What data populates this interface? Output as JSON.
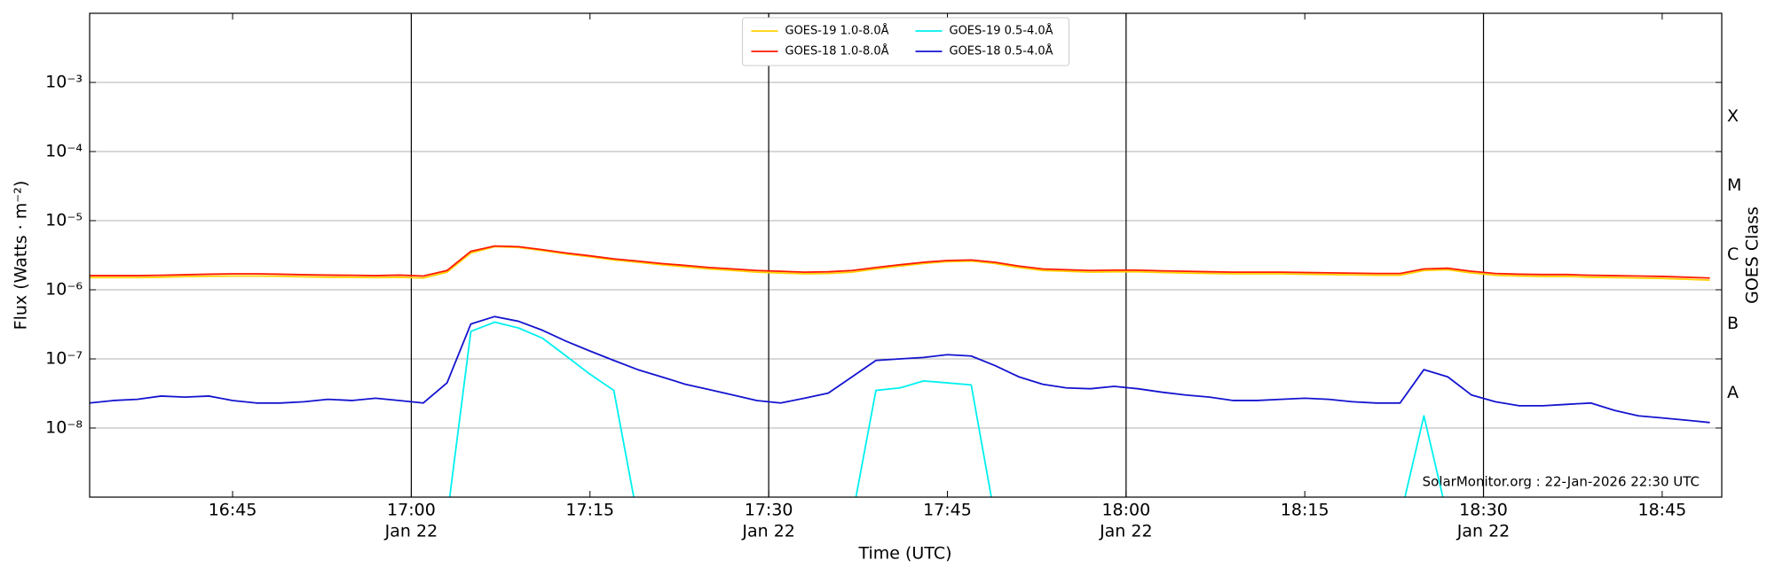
{
  "chart_data": {
    "type": "line",
    "ylabel": "Flux (Watts · m⁻²)",
    "xlabel": "Time (UTC)",
    "y2label": "GOES Class",
    "annotation": "SolarMonitor.org : 22-Jan-2026 22:30 UTC",
    "ylog": true,
    "grid": true,
    "legend": "upper center",
    "ylim": [
      1e-09,
      0.01
    ],
    "yticks": [
      {
        "value": 1e-08,
        "label": "10⁻⁸"
      },
      {
        "value": 1e-07,
        "label": "10⁻⁷"
      },
      {
        "value": 1e-06,
        "label": "10⁻⁶"
      },
      {
        "value": 1e-05,
        "label": "10⁻⁵"
      },
      {
        "value": 0.0001,
        "label": "10⁻⁴"
      },
      {
        "value": 0.001,
        "label": "10⁻³"
      }
    ],
    "y2lim": [
      1e-09,
      0.01
    ],
    "y2ticks": [
      {
        "value": 3.2e-08,
        "label": "A"
      },
      {
        "value": 3.2e-07,
        "label": "B"
      },
      {
        "value": 3.2e-06,
        "label": "C"
      },
      {
        "value": 3.2e-05,
        "label": "M"
      },
      {
        "value": 0.00032,
        "label": "X"
      }
    ],
    "xlim": [
      "16:33",
      "18:50"
    ],
    "xticks": [
      "16:45",
      {
        "value": "17:00",
        "label": [
          "17:00",
          "Jan 22"
        ]
      },
      "17:15",
      {
        "value": "17:30",
        "label": [
          "17:30",
          "Jan 22"
        ]
      },
      "17:45",
      {
        "value": "18:00",
        "label": [
          "18:00",
          "Jan 22"
        ]
      },
      "18:15",
      {
        "value": "18:30",
        "label": [
          "18:30",
          "Jan 22"
        ]
      },
      "18:45"
    ],
    "vlines": [
      "17:00",
      "17:30",
      "18:00",
      "18:30"
    ],
    "x": [
      "16:33",
      "16:35",
      "16:37",
      "16:39",
      "16:41",
      "16:43",
      "16:45",
      "16:47",
      "16:49",
      "16:51",
      "16:53",
      "16:55",
      "16:57",
      "16:59",
      "17:01",
      "17:03",
      "17:05",
      "17:07",
      "17:09",
      "17:11",
      "17:13",
      "17:15",
      "17:17",
      "17:19",
      "17:21",
      "17:23",
      "17:25",
      "17:27",
      "17:29",
      "17:31",
      "17:33",
      "17:35",
      "17:37",
      "17:39",
      "17:41",
      "17:43",
      "17:45",
      "17:47",
      "17:49",
      "17:51",
      "17:53",
      "17:55",
      "17:57",
      "17:59",
      "18:01",
      "18:03",
      "18:05",
      "18:07",
      "18:09",
      "18:11",
      "18:13",
      "18:15",
      "18:17",
      "18:19",
      "18:21",
      "18:23",
      "18:25",
      "18:27",
      "18:29",
      "18:31",
      "18:33",
      "18:35",
      "18:37",
      "18:39",
      "18:41",
      "18:43",
      "18:45",
      "18:47",
      "18:49"
    ],
    "series": [
      {
        "name": "GOES-19 1.0-8.0Å",
        "color": "#ffd000",
        "values": [
          1.5e-06,
          1.5e-06,
          1.5e-06,
          1.52e-06,
          1.55e-06,
          1.57e-06,
          1.58e-06,
          1.58e-06,
          1.57e-06,
          1.54e-06,
          1.52e-06,
          1.52e-06,
          1.5e-06,
          1.52e-06,
          1.48e-06,
          1.8e-06,
          3.4e-06,
          4.2e-06,
          4.1e-06,
          3.7e-06,
          3.3e-06,
          3e-06,
          2.7e-06,
          2.5e-06,
          2.3e-06,
          2.15e-06,
          2e-06,
          1.9e-06,
          1.8e-06,
          1.75e-06,
          1.7e-06,
          1.72e-06,
          1.8e-06,
          2e-06,
          2.2e-06,
          2.4e-06,
          2.55e-06,
          2.6e-06,
          2.4e-06,
          2.1e-06,
          1.9e-06,
          1.85e-06,
          1.8e-06,
          1.82e-06,
          1.82e-06,
          1.78e-06,
          1.75e-06,
          1.72e-06,
          1.7e-06,
          1.7e-06,
          1.7e-06,
          1.68e-06,
          1.66e-06,
          1.64e-06,
          1.62e-06,
          1.62e-06,
          1.9e-06,
          1.95e-06,
          1.75e-06,
          1.62e-06,
          1.58e-06,
          1.56e-06,
          1.56e-06,
          1.52e-06,
          1.5e-06,
          1.48e-06,
          1.46e-06,
          1.42e-06,
          1.38e-06
        ]
      },
      {
        "name": "GOES-18 1.0-8.0Å",
        "color": "#ff1a00",
        "values": [
          1.6e-06,
          1.6e-06,
          1.6e-06,
          1.62e-06,
          1.65e-06,
          1.68e-06,
          1.7e-06,
          1.7e-06,
          1.68e-06,
          1.65e-06,
          1.63e-06,
          1.62e-06,
          1.6e-06,
          1.63e-06,
          1.58e-06,
          1.9e-06,
          3.6e-06,
          4.3e-06,
          4.2e-06,
          3.8e-06,
          3.4e-06,
          3.1e-06,
          2.8e-06,
          2.6e-06,
          2.4e-06,
          2.25e-06,
          2.1e-06,
          2e-06,
          1.9e-06,
          1.85e-06,
          1.8e-06,
          1.82e-06,
          1.9e-06,
          2.1e-06,
          2.3e-06,
          2.5e-06,
          2.65e-06,
          2.7e-06,
          2.5e-06,
          2.2e-06,
          2e-06,
          1.95e-06,
          1.9e-06,
          1.92e-06,
          1.92e-06,
          1.88e-06,
          1.85e-06,
          1.82e-06,
          1.8e-06,
          1.8e-06,
          1.8e-06,
          1.78e-06,
          1.76e-06,
          1.74e-06,
          1.72e-06,
          1.72e-06,
          2e-06,
          2.05e-06,
          1.85e-06,
          1.72e-06,
          1.68e-06,
          1.66e-06,
          1.66e-06,
          1.62e-06,
          1.6e-06,
          1.58e-06,
          1.56e-06,
          1.52e-06,
          1.48e-06
        ]
      },
      {
        "name": "GOES-19 0.5-4.0Å",
        "color": "#00f0f0",
        "values": [
          null,
          null,
          null,
          null,
          null,
          null,
          null,
          null,
          null,
          null,
          null,
          null,
          null,
          null,
          null,
          5e-10,
          2.5e-07,
          3.4e-07,
          2.8e-07,
          2e-07,
          1.1e-07,
          6e-08,
          3.5e-08,
          5e-10,
          null,
          null,
          null,
          null,
          null,
          null,
          null,
          null,
          5e-10,
          3.5e-08,
          3.8e-08,
          4.8e-08,
          4.5e-08,
          4.2e-08,
          5e-10,
          null,
          null,
          null,
          null,
          null,
          null,
          null,
          null,
          null,
          null,
          null,
          null,
          null,
          null,
          null,
          null,
          5e-10,
          1.5e-08,
          5e-10,
          null,
          null,
          null,
          null,
          null,
          null,
          null,
          null,
          null,
          null,
          null
        ]
      },
      {
        "name": "GOES-18 0.5-4.0Å",
        "color": "#1414d0",
        "values": [
          2.3e-08,
          2.5e-08,
          2.6e-08,
          2.9e-08,
          2.8e-08,
          2.9e-08,
          2.5e-08,
          2.3e-08,
          2.3e-08,
          2.4e-08,
          2.6e-08,
          2.5e-08,
          2.7e-08,
          2.5e-08,
          2.3e-08,
          4.5e-08,
          3.2e-07,
          4.1e-07,
          3.5e-07,
          2.6e-07,
          1.8e-07,
          1.3e-07,
          9.5e-08,
          7e-08,
          5.5e-08,
          4.3e-08,
          3.6e-08,
          3e-08,
          2.5e-08,
          2.3e-08,
          2.7e-08,
          3.2e-08,
          5.5e-08,
          9.5e-08,
          1e-07,
          1.05e-07,
          1.15e-07,
          1.1e-07,
          8e-08,
          5.5e-08,
          4.3e-08,
          3.8e-08,
          3.7e-08,
          4e-08,
          3.7e-08,
          3.3e-08,
          3e-08,
          2.8e-08,
          2.5e-08,
          2.5e-08,
          2.6e-08,
          2.7e-08,
          2.6e-08,
          2.4e-08,
          2.3e-08,
          2.3e-08,
          7e-08,
          5.5e-08,
          3e-08,
          2.4e-08,
          2.1e-08,
          2.1e-08,
          2.2e-08,
          2.3e-08,
          1.8e-08,
          1.5e-08,
          1.4e-08,
          1.3e-08,
          1.2e-08
        ]
      }
    ]
  }
}
